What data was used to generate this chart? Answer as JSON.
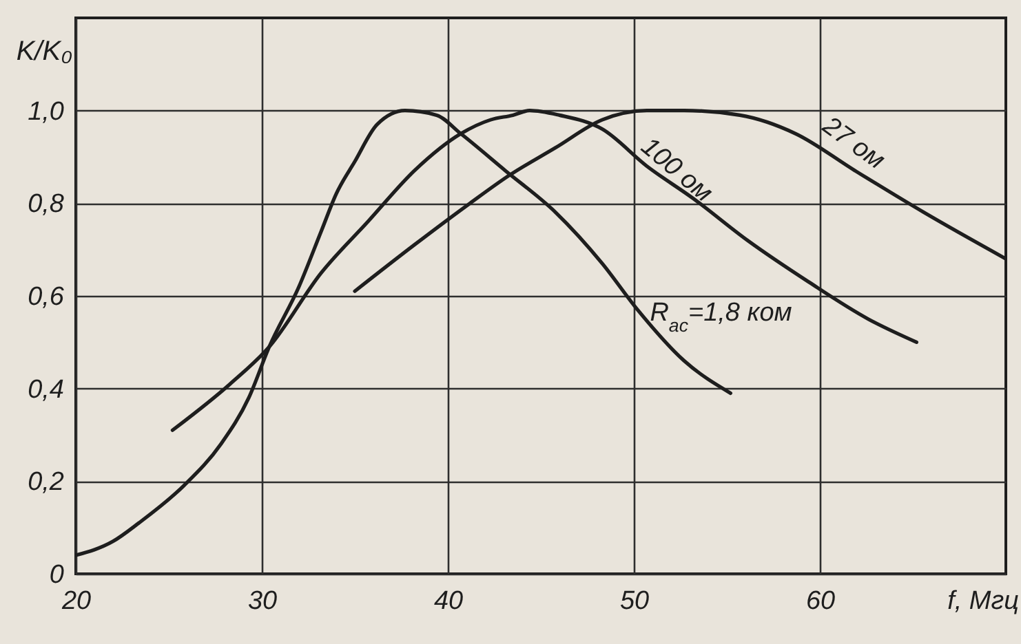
{
  "chart_data": {
    "type": "line",
    "xlabel": "f, Мгц",
    "ylabel": "K/K₀",
    "xlim": [
      20,
      70
    ],
    "ylim": [
      0,
      1.2
    ],
    "xticks": [
      20,
      30,
      40,
      50,
      60
    ],
    "yticks": [
      0,
      {
        "value": 0.2,
        "label": "0,2"
      },
      {
        "value": 0.4,
        "label": "0,4"
      },
      {
        "value": 0.6,
        "label": "0,6"
      },
      {
        "value": 0.8,
        "label": "0,8"
      },
      {
        "value": 1,
        "label": "1,0"
      }
    ],
    "grid": true,
    "series": [
      {
        "name": "R$_{ac}$=1,8 ком",
        "color": "#1e1e1e",
        "x": [
          20,
          22,
          23.4,
          25.8,
          27.8,
          29.3,
          30.4,
          32,
          33.2,
          34,
          35,
          36.2,
          37.7,
          39.4,
          40.7,
          43.1,
          45.8,
          48.3,
          50.2,
          52.7,
          55.2
        ],
        "values": [
          0.04,
          0.07,
          0.11,
          0.19,
          0.28,
          0.38,
          0.49,
          0.62,
          0.74,
          0.82,
          0.89,
          0.97,
          1.0,
          0.99,
          0.95,
          0.87,
          0.78,
          0.67,
          0.57,
          0.46,
          0.39
        ]
      },
      {
        "name": "100 ом",
        "color": "#1e1e1e",
        "x": [
          25.2,
          28.3,
          30.4,
          33.2,
          35.7,
          38.2,
          40.7,
          42.3,
          43.5,
          44.4,
          46,
          48.3,
          50.7,
          53.2,
          56.1,
          59.4,
          62.6,
          65.2
        ],
        "values": [
          0.31,
          0.41,
          0.49,
          0.65,
          0.76,
          0.87,
          0.95,
          0.98,
          0.99,
          1.0,
          0.99,
          0.96,
          0.88,
          0.81,
          0.72,
          0.63,
          0.55,
          0.5
        ]
      },
      {
        "name": "27 ом",
        "color": "#1e1e1e",
        "x": [
          35,
          38.2,
          41.2,
          43.3,
          45.8,
          48.3,
          50.7,
          52.7,
          55.7,
          58.7,
          61.9,
          65.6,
          70
        ],
        "values": [
          0.61,
          0.71,
          0.8,
          0.86,
          0.92,
          0.98,
          1.0,
          1.0,
          0.99,
          0.95,
          0.87,
          0.78,
          0.68
        ]
      }
    ]
  }
}
